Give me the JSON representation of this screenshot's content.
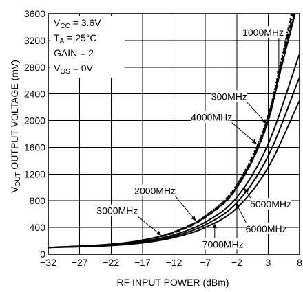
{
  "chart_data": {
    "type": "line",
    "xlabel": "RF INPUT POWER (dBm)",
    "ylabel": {
      "v": "V",
      "sub": "OUT",
      "rest": " OUTPUT VOLTAGE (mV)"
    },
    "xlim": [
      -32,
      8
    ],
    "ylim": [
      0,
      3600
    ],
    "xticks": [
      "−32",
      "−27",
      "−22",
      "−17",
      "−12",
      "−7",
      "−2",
      "3",
      "8"
    ],
    "yticks": [
      "0",
      "400",
      "800",
      "1200",
      "1600",
      "2000",
      "2400",
      "2800",
      "3200",
      "3600"
    ],
    "grid": true,
    "conditions": [
      {
        "main": "V",
        "sub": "CC",
        "rest": " = 3.6V"
      },
      {
        "main": "T",
        "sub": "A",
        "rest": " = 25°C"
      },
      {
        "main": "GAIN = 2",
        "sub": "",
        "rest": ""
      },
      {
        "main": "V",
        "sub": "OS",
        "rest": " = 0V"
      }
    ],
    "series": [
      {
        "name": "1000MHz",
        "style": "dashdot",
        "points": [
          [
            -32,
            100
          ],
          [
            -22,
            150
          ],
          [
            -17,
            210
          ],
          [
            -12,
            330
          ],
          [
            -7,
            560
          ],
          [
            -2,
            1010
          ],
          [
            3,
            2030
          ],
          [
            5,
            2800
          ],
          [
            7,
            3600
          ]
        ]
      },
      {
        "name": "300MHz",
        "style": "solid",
        "points": [
          [
            -32,
            100
          ],
          [
            -22,
            150
          ],
          [
            -17,
            210
          ],
          [
            -12,
            330
          ],
          [
            -7,
            560
          ],
          [
            -2,
            1000
          ],
          [
            3,
            2000
          ],
          [
            5,
            2760
          ],
          [
            7.3,
            3600
          ]
        ]
      },
      {
        "name": "4000MHz",
        "style": "dashed",
        "points": [
          [
            -32,
            100
          ],
          [
            -22,
            150
          ],
          [
            -17,
            210
          ],
          [
            -12,
            320
          ],
          [
            -7,
            550
          ],
          [
            -2,
            990
          ],
          [
            3,
            1990
          ],
          [
            5,
            2760
          ],
          [
            7.2,
            3600
          ]
        ]
      },
      {
        "name": "2000MHz",
        "style": "dashed",
        "points": [
          [
            -32,
            100
          ],
          [
            -22,
            150
          ],
          [
            -17,
            210
          ],
          [
            -12,
            330
          ],
          [
            -7,
            570
          ],
          [
            -2,
            1030
          ],
          [
            3,
            2060
          ],
          [
            5,
            2840
          ],
          [
            6.8,
            3600
          ]
        ]
      },
      {
        "name": "3000MHz",
        "style": "dotted",
        "points": [
          [
            -32,
            100
          ],
          [
            -22,
            150
          ],
          [
            -17,
            210
          ],
          [
            -12,
            335
          ],
          [
            -7,
            575
          ],
          [
            -2,
            1040
          ],
          [
            3,
            2080
          ],
          [
            5,
            2870
          ],
          [
            6.7,
            3600
          ]
        ]
      },
      {
        "name": "5000MHz",
        "style": "solid",
        "points": [
          [
            -32,
            100
          ],
          [
            -22,
            140
          ],
          [
            -17,
            190
          ],
          [
            -12,
            290
          ],
          [
            -7,
            480
          ],
          [
            -2,
            850
          ],
          [
            3,
            1650
          ],
          [
            8,
            3000
          ]
        ]
      },
      {
        "name": "6000MHz",
        "style": "solid",
        "points": [
          [
            -32,
            100
          ],
          [
            -22,
            135
          ],
          [
            -17,
            180
          ],
          [
            -12,
            270
          ],
          [
            -7,
            440
          ],
          [
            -2,
            770
          ],
          [
            3,
            1470
          ],
          [
            8,
            2650
          ]
        ]
      },
      {
        "name": "7000MHz",
        "style": "solid",
        "points": [
          [
            -32,
            100
          ],
          [
            -22,
            130
          ],
          [
            -17,
            170
          ],
          [
            -12,
            250
          ],
          [
            -7,
            400
          ],
          [
            -2,
            690
          ],
          [
            3,
            1300
          ],
          [
            8,
            2300
          ]
        ]
      }
    ],
    "annotations": [
      {
        "series": "1000MHz",
        "text": "1000MHz",
        "at": [
          2.2,
          3270
        ],
        "target": [
          4.7,
          2660
        ]
      },
      {
        "series": "300MHz",
        "text": "300MHz",
        "at": [
          -3.2,
          2310
        ],
        "target": [
          2.8,
          1950
        ]
      },
      {
        "series": "4000MHz",
        "text": "4000MHz",
        "at": [
          -6,
          2000
        ],
        "target": [
          1.2,
          1650
        ]
      },
      {
        "series": "2000MHz",
        "text": "2000MHz",
        "at": [
          -15,
          900
        ],
        "target": [
          -8.5,
          500
        ]
      },
      {
        "series": "3000MHz",
        "text": "3000MHz",
        "at": [
          -21,
          600
        ],
        "target": [
          -14,
          280
        ]
      },
      {
        "series": "5000MHz",
        "text": "5000MHz",
        "at": [
          3.4,
          700
        ],
        "target": [
          -0.8,
          990
        ]
      },
      {
        "series": "6000MHz",
        "text": "6000MHz",
        "at": [
          2.7,
          330
        ],
        "target": [
          -2.2,
          780
        ]
      },
      {
        "series": "7000MHz",
        "text": "7000MHz",
        "at": [
          -4.2,
          100
        ],
        "target": [
          -5.5,
          460
        ]
      }
    ]
  }
}
